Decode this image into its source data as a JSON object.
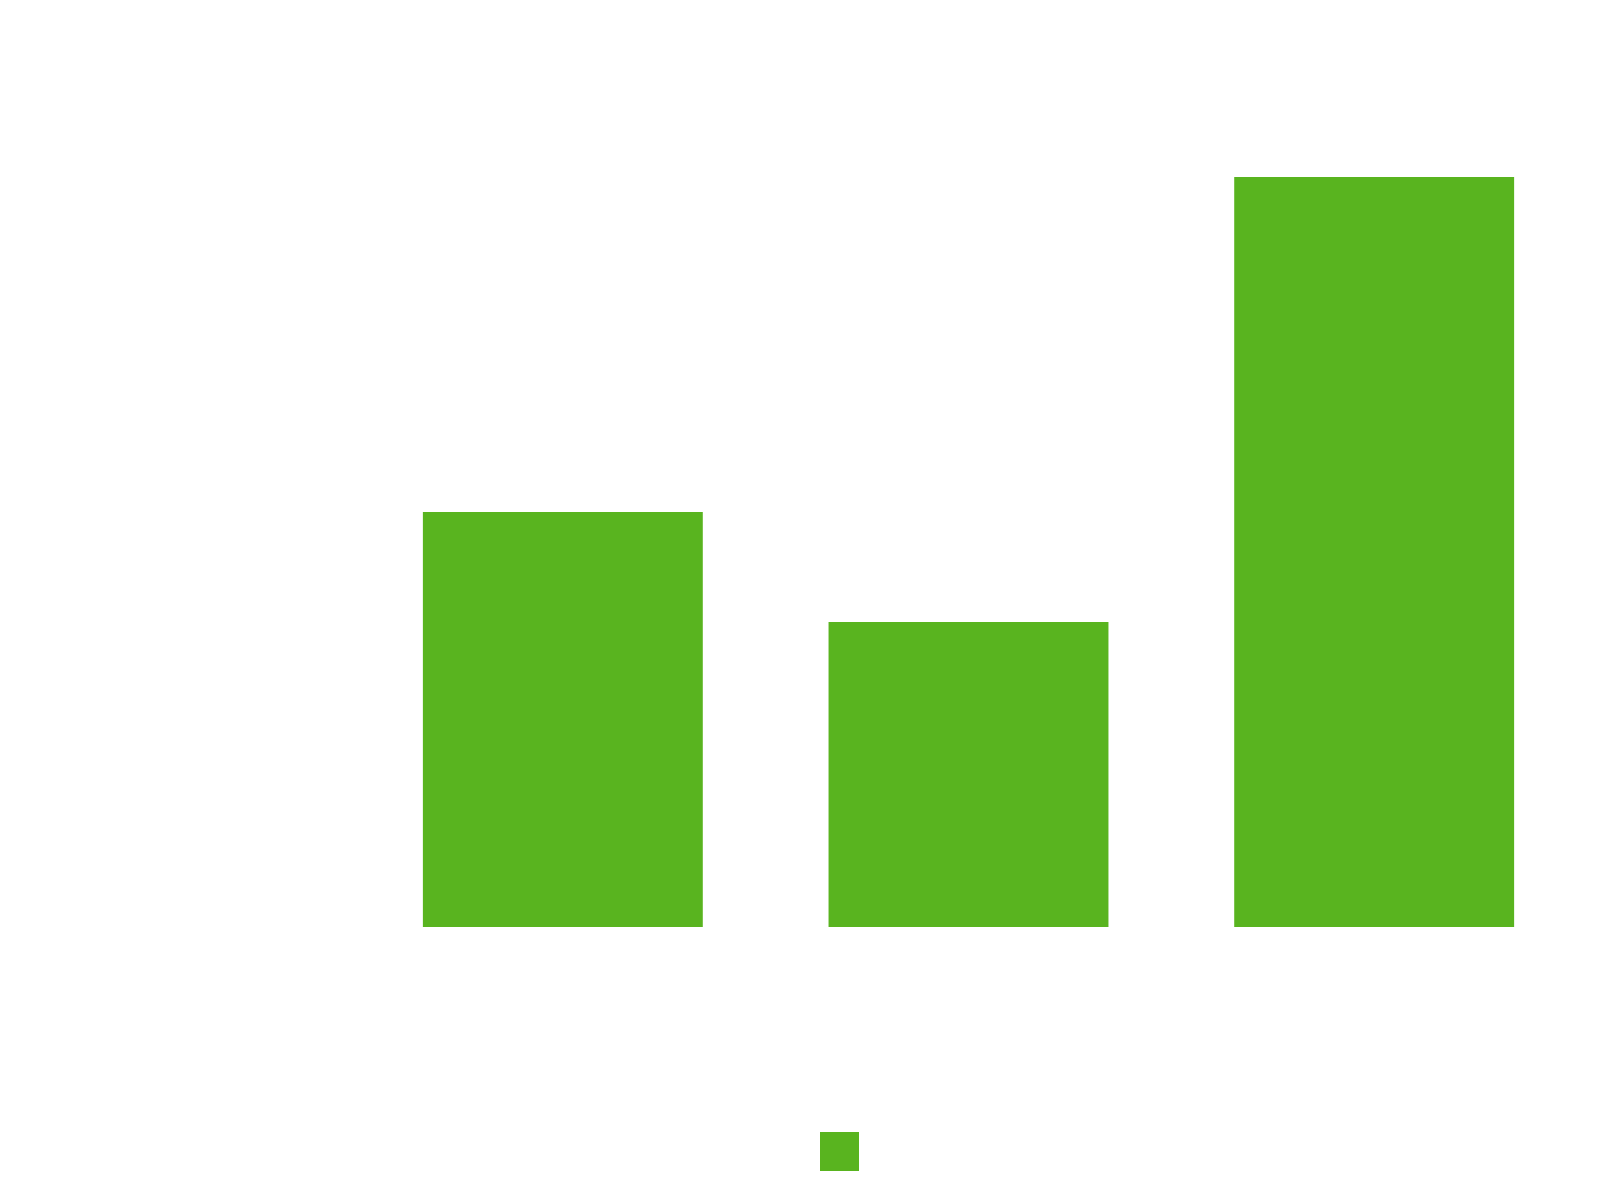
{
  "chart_data": {
    "type": "bar",
    "categories": [
      null,
      null,
      null
    ],
    "values": [
      4.15,
      3.05,
      7.5
    ],
    "color": "#59b41f",
    "ylim": [
      0,
      8
    ],
    "legend": "bottom"
  }
}
